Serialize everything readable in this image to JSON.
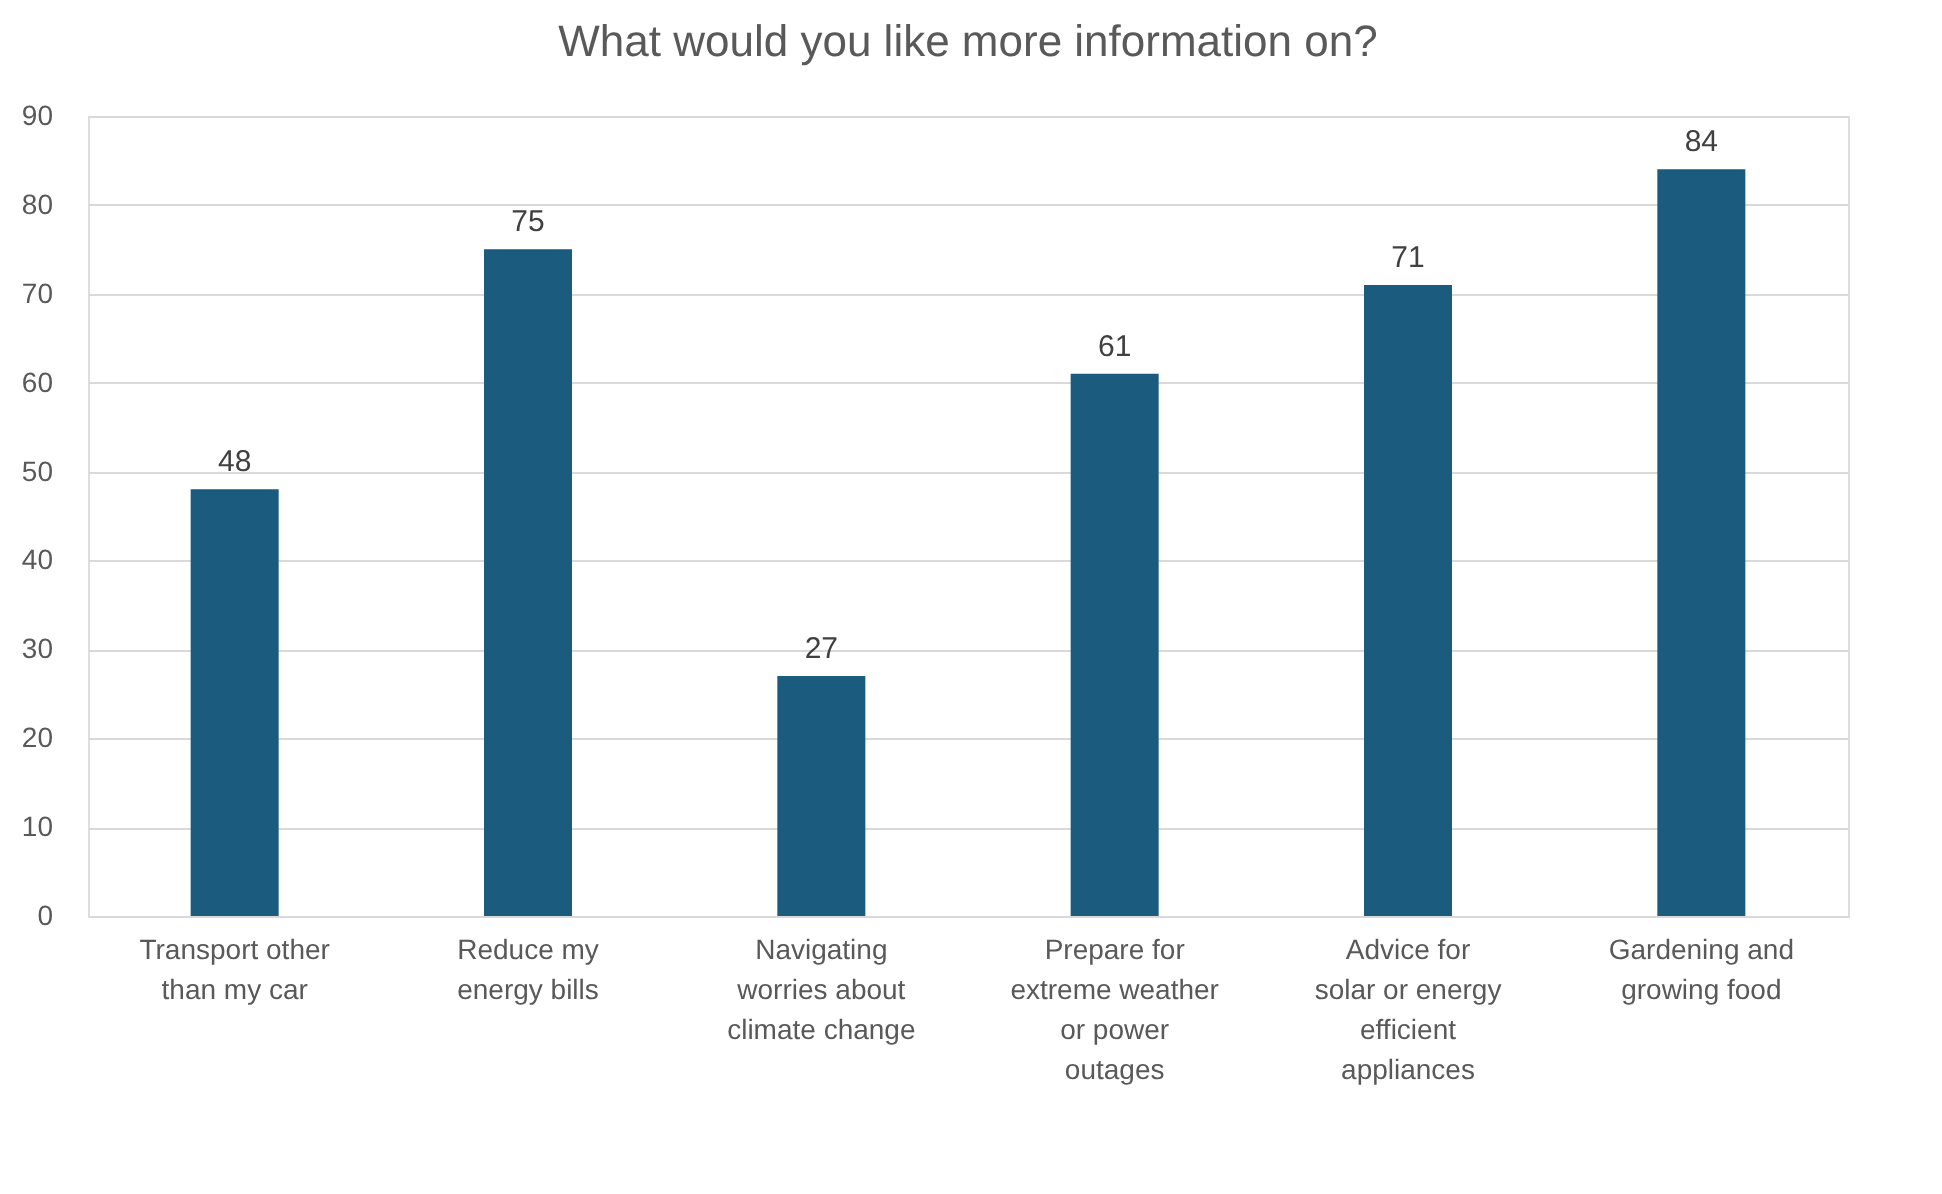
{
  "chart_data": {
    "type": "bar",
    "title": "What would you like more information on?",
    "categories": [
      "Transport other than my car",
      "Reduce my energy bills",
      "Navigating worries about climate change",
      "Prepare for extreme weather or power outages",
      "Advice for solar or energy efficient appliances",
      "Gardening and growing food"
    ],
    "values": [
      48,
      75,
      27,
      61,
      71,
      84
    ],
    "color": "#1a5b7e",
    "ylim": [
      0,
      90
    ],
    "yticks": [
      0,
      10,
      20,
      30,
      40,
      50,
      60,
      70,
      80,
      90
    ],
    "grid": "y",
    "data_labels": true
  }
}
